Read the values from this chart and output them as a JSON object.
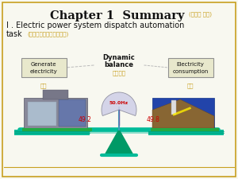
{
  "title_main": "Chapter 1  Summary",
  "title_sub_cn": "(第一章 概述)",
  "subtitle_line1": "I . Electric power system dispatch automation",
  "subtitle_line2": "task",
  "subtitle_cn": "(电力系统调度自动化任务)",
  "dynamic_balance": "Dynamic\nbalance",
  "dynamic_balance_cn": "动态平衡",
  "box_left_en": "Generate\nelectricity",
  "box_left_cn": "发电",
  "box_right_en": "Electricity\nconsumption",
  "box_right_cn": "用电",
  "freq_center": "50.0Hz",
  "freq_left": "49.2",
  "freq_right": "49.8",
  "bg_color": "#f8f8f0",
  "border_color": "#c8a020",
  "title_color": "#111111",
  "title_cn_color": "#c8a020",
  "subtitle_color": "#111111",
  "subtitle_cn_color": "#c8a020",
  "box_border_color": "#909090",
  "box_bg_color": "#e8e8cc",
  "box_text_color": "#111111",
  "box_cn_color": "#c8a020",
  "dynamic_color": "#111111",
  "dynamic_cn_color": "#c8a020",
  "freq_center_color": "#cc0000",
  "freq_side_color": "#cc0000",
  "scale_beam_color": "#00bb99",
  "scale_pivot_color": "#009966",
  "dotted_line_color": "#bbbbbb",
  "bottom_line_color": "#c8a020"
}
